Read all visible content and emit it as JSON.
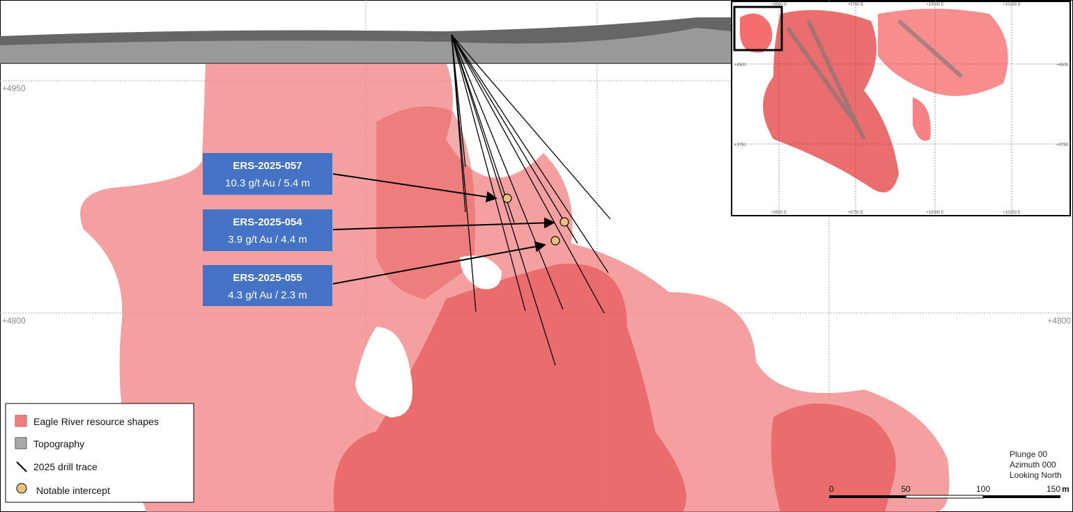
{
  "grid_labels": {
    "left": [
      "+4950",
      "+4800"
    ],
    "right": [
      "+4800"
    ]
  },
  "inset": {
    "top_labels": [
      "+9500 E",
      "+9750 E",
      "+10000 E",
      "+10250 E"
    ],
    "bottom_labels": [
      "+9500 E",
      "+9750 E",
      "+10000 E",
      "+10250 E"
    ],
    "left_labels": [
      "+4500",
      "+3750"
    ],
    "right_labels": [
      "+4500",
      "+3750"
    ]
  },
  "callouts": [
    {
      "hole": "ERS-2025-057",
      "result": "10.3 g/t Au / 5.4 m"
    },
    {
      "hole": "ERS-2025-054",
      "result": "3.9 g/t Au / 4.4 m"
    },
    {
      "hole": "ERS-2025-055",
      "result": "4.3 g/t Au / 2.3 m"
    }
  ],
  "legend": [
    "Eagle River resource shapes",
    "Topography",
    "2025 drill trace",
    "Notable intercept"
  ],
  "orientation": [
    "Plunge 00",
    "Azimuth 000",
    "Looking North"
  ],
  "scale_bar": {
    "labels": [
      "0",
      "50",
      "100",
      "150"
    ],
    "unit": "m"
  }
}
